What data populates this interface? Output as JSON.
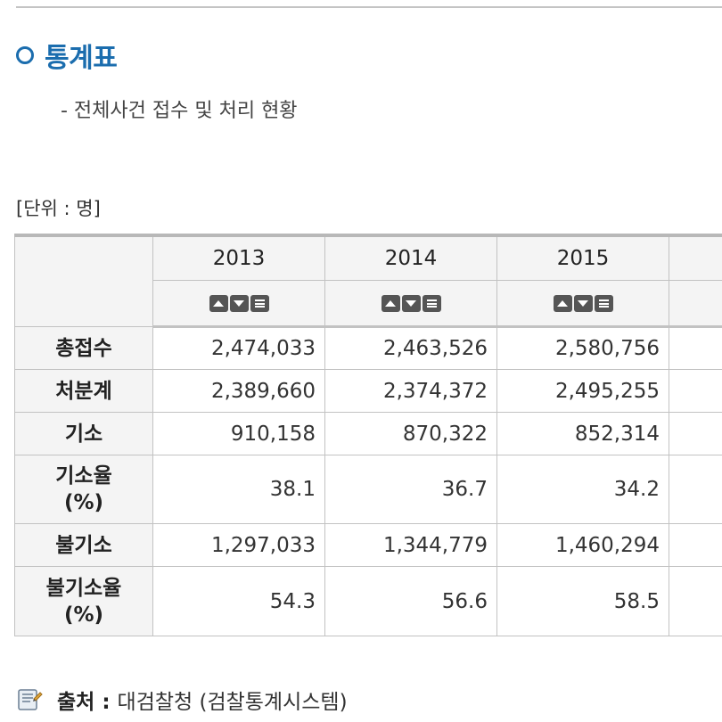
{
  "heading": "통계표",
  "subtitle": "- 전체사건 접수 및 처리 현황",
  "unit": "[단위 : 명]",
  "table": {
    "years": [
      "2013",
      "2014",
      "2015"
    ],
    "rows": [
      {
        "label": "총접수",
        "values": [
          "2,474,033",
          "2,463,526",
          "2,580,756"
        ]
      },
      {
        "label": "처분계",
        "values": [
          "2,389,660",
          "2,374,372",
          "2,495,255"
        ]
      },
      {
        "label": "기소",
        "values": [
          "910,158",
          "870,322",
          "852,314"
        ]
      },
      {
        "label": "기소율\n(%)",
        "values": [
          "38.1",
          "36.7",
          "34.2"
        ]
      },
      {
        "label": "불기소",
        "values": [
          "1,297,033",
          "1,344,779",
          "1,460,294"
        ]
      },
      {
        "label": "불기소율\n(%)",
        "values": [
          "54.3",
          "56.6",
          "58.5"
        ]
      }
    ]
  },
  "source": {
    "label": "출처 :",
    "text": "대검찰청 (검찰통계시스템)",
    "icon": "book-icon"
  },
  "colors": {
    "accent": "#1b6dae",
    "header_bg": "#f4f4f4",
    "border": "#c2c2c2"
  }
}
